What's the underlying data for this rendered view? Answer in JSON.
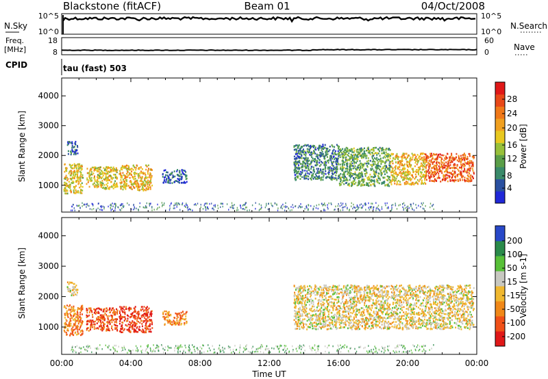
{
  "header": {
    "title": "Blackstone (fitACF)",
    "beam": "Beam 01",
    "date": "04/Oct/2008"
  },
  "top_panels": {
    "nsky_label": "N.Sky",
    "nsky_ticks": [
      "10^5",
      "10^0"
    ],
    "nsearch_label": "N.Search",
    "nsearch_ticks": [
      "10^5",
      "10^0"
    ],
    "freq_label_1": "Freq.",
    "freq_label_2": "[MHz]",
    "freq_ticks": [
      "18",
      "8"
    ],
    "nave_label": "Nave",
    "nave_ticks": [
      "60",
      "0"
    ],
    "cpid_label": "CPID",
    "cpid_value": "tau (fast) 503"
  },
  "chart_data": [
    {
      "type": "heatmap",
      "name": "power-panel",
      "ylabel": "Slant Range [km]",
      "ylim": [
        100,
        4600
      ],
      "yticks": [
        1000,
        2000,
        3000,
        4000
      ],
      "colorbar_label": "Power [dB]",
      "colorbar_ticks": [
        "4",
        "8",
        "12",
        "16",
        "20",
        "24",
        "28"
      ],
      "colors": [
        "#2028d8",
        "#2a50a0",
        "#3a8a6a",
        "#5a9e48",
        "#98c03a",
        "#e8c820",
        "#f0a020",
        "#f07818",
        "#e84818",
        "#e01818"
      ],
      "patches": [
        {
          "t": [
            0.1,
            1.2
          ],
          "r": [
            750,
            1750
          ],
          "lvl": 0.55
        },
        {
          "t": [
            0.3,
            0.9
          ],
          "r": [
            2050,
            2500
          ],
          "lvl": 0.15
        },
        {
          "t": [
            1.4,
            3.2
          ],
          "r": [
            900,
            1650
          ],
          "lvl": 0.55
        },
        {
          "t": [
            3.3,
            5.2
          ],
          "r": [
            850,
            1700
          ],
          "lvl": 0.6
        },
        {
          "t": [
            5.8,
            7.2
          ],
          "r": [
            1100,
            1550
          ],
          "lvl": 0.15
        },
        {
          "t": [
            13.4,
            16.0
          ],
          "r": [
            1200,
            2400
          ],
          "lvl": 0.25
        },
        {
          "t": [
            16.0,
            19.0
          ],
          "r": [
            1000,
            2300
          ],
          "lvl": 0.35
        },
        {
          "t": [
            19.0,
            21.0
          ],
          "r": [
            1050,
            2100
          ],
          "lvl": 0.6
        },
        {
          "t": [
            21.0,
            23.8
          ],
          "r": [
            1150,
            2100
          ],
          "lvl": 0.8
        }
      ]
    },
    {
      "type": "heatmap",
      "name": "velocity-panel",
      "xlabel": "Time UT",
      "ylabel": "Slant Range [km]",
      "ylim": [
        100,
        4600
      ],
      "yticks": [
        1000,
        2000,
        3000,
        4000
      ],
      "xticks": [
        "00:00",
        "04:00",
        "08:00",
        "12:00",
        "16:00",
        "20:00",
        "00:00"
      ],
      "colorbar_label": "Velocity [m s-1]",
      "colorbar_ticks": [
        "200",
        "100",
        "50",
        "15",
        "-15",
        "-50",
        "-100",
        "-200"
      ],
      "colors": [
        "#e01818",
        "#f05018",
        "#f08818",
        "#f0b830",
        "#c8c8c0",
        "#58c038",
        "#2a8a4a",
        "#2848c8"
      ],
      "patches": [
        {
          "t": [
            0.1,
            1.2
          ],
          "r": [
            750,
            1750
          ],
          "lvl": 0.3
        },
        {
          "t": [
            0.3,
            0.9
          ],
          "r": [
            2050,
            2500
          ],
          "lvl": 0.5
        },
        {
          "t": [
            1.4,
            3.2
          ],
          "r": [
            900,
            1650
          ],
          "lvl": 0.2
        },
        {
          "t": [
            3.3,
            5.2
          ],
          "r": [
            850,
            1700
          ],
          "lvl": 0.12
        },
        {
          "t": [
            5.8,
            7.2
          ],
          "r": [
            1100,
            1550
          ],
          "lvl": 0.3
        },
        {
          "t": [
            13.4,
            23.8
          ],
          "r": [
            950,
            2400
          ],
          "lvl": 0.5
        }
      ]
    }
  ]
}
